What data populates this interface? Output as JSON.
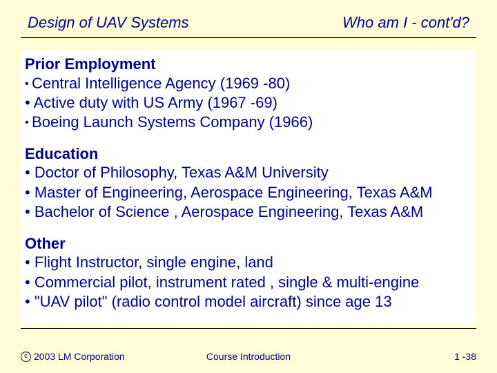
{
  "colors": {
    "slide_bg": "#fefdd8",
    "text": "#000088",
    "content_bg": "#ffffff",
    "rule": "#000000"
  },
  "header": {
    "left": "Design of UAV Systems",
    "right": "Who am I - cont'd?"
  },
  "sections": [
    {
      "title": "Prior Employment",
      "bullets": [
        {
          "text": "Central Intelligence Agency (1969 -80)",
          "style": "small"
        },
        {
          "text": "Active duty with US Army (1967 -69)",
          "style": "big"
        },
        {
          "text": "Boeing Launch Systems Company (1966)",
          "style": "small"
        }
      ]
    },
    {
      "title": "Education",
      "bullets": [
        {
          "text": "Doctor of Philosophy, Texas A&M University",
          "style": "big"
        },
        {
          "text": "Master of Engineering, Aerospace Engineering, Texas A&M",
          "style": "big"
        },
        {
          "text": "Bachelor of Science , Aerospace Engineering, Texas A&M",
          "style": "big"
        }
      ]
    },
    {
      "title": "Other",
      "bullets": [
        {
          "text": "Flight Instructor, single engine, land",
          "style": "big"
        },
        {
          "text": "Commercial pilot, instrument rated , single & multi-engine",
          "style": "big"
        },
        {
          "text": "\"UAV pilot\" (radio control model aircraft) since age 13",
          "style": "big"
        }
      ]
    }
  ],
  "footer": {
    "copyright_symbol": "c",
    "copyright_text": "2003 LM Corporation",
    "center": "Course Introduction",
    "right": "1 -38"
  }
}
